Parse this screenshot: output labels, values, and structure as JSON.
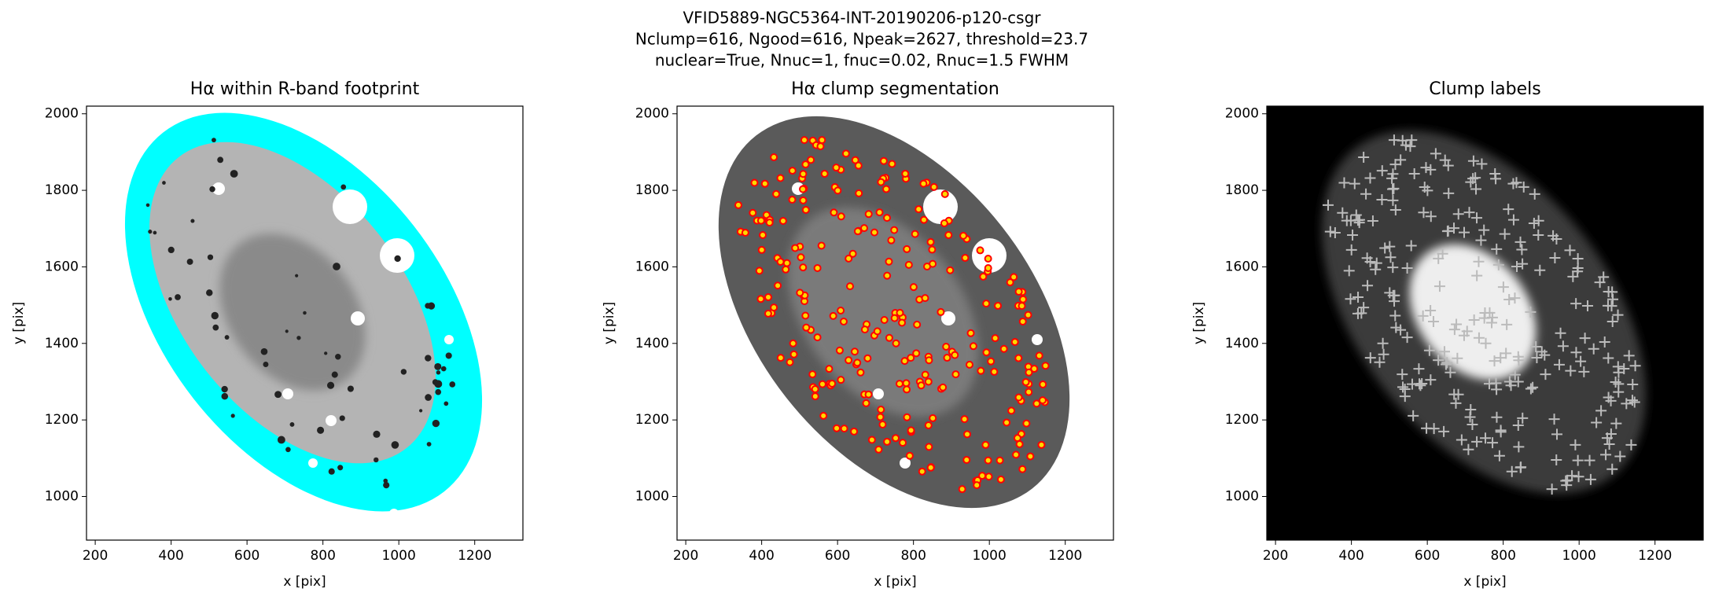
{
  "title": [
    "VFID5889-NGC5364-INT-20190206-p120-csgr",
    "Nclump=616, Ngood=616, Npeak=2627, threshold=23.7",
    "nuclear=True, Nnuc=1, fnuc=0.02, Rnuc=1.5 FWHM"
  ],
  "chart_data": [
    {
      "type": "image",
      "title": "Hα within R-band footprint",
      "xlabel": "x [pix]",
      "ylabel": "y [pix]",
      "xlim": [
        177,
        1327
      ],
      "ylim": [
        886,
        2020
      ],
      "xticks": [
        200,
        400,
        600,
        800,
        1000,
        1200
      ],
      "yticks": [
        1000,
        1200,
        1400,
        1600,
        1800,
        2000
      ]
    },
    {
      "type": "image",
      "title": "Hα clump segmentation",
      "xlabel": "x [pix]",
      "ylabel": "y [pix]",
      "xlim": [
        177,
        1327
      ],
      "ylim": [
        886,
        2020
      ],
      "xticks": [
        200,
        400,
        600,
        800,
        1000,
        1200
      ],
      "yticks": [
        1000,
        1200,
        1400,
        1600,
        1800,
        2000
      ]
    },
    {
      "type": "image",
      "title": "Clump labels",
      "xlabel": "x [pix]",
      "ylabel": "y [pix]",
      "xlim": [
        177,
        1327
      ],
      "ylim": [
        886,
        2020
      ],
      "xticks": [
        200,
        400,
        600,
        800,
        1000,
        1200
      ],
      "yticks": [
        1000,
        1200,
        1400,
        1600,
        1800,
        2000
      ]
    }
  ]
}
